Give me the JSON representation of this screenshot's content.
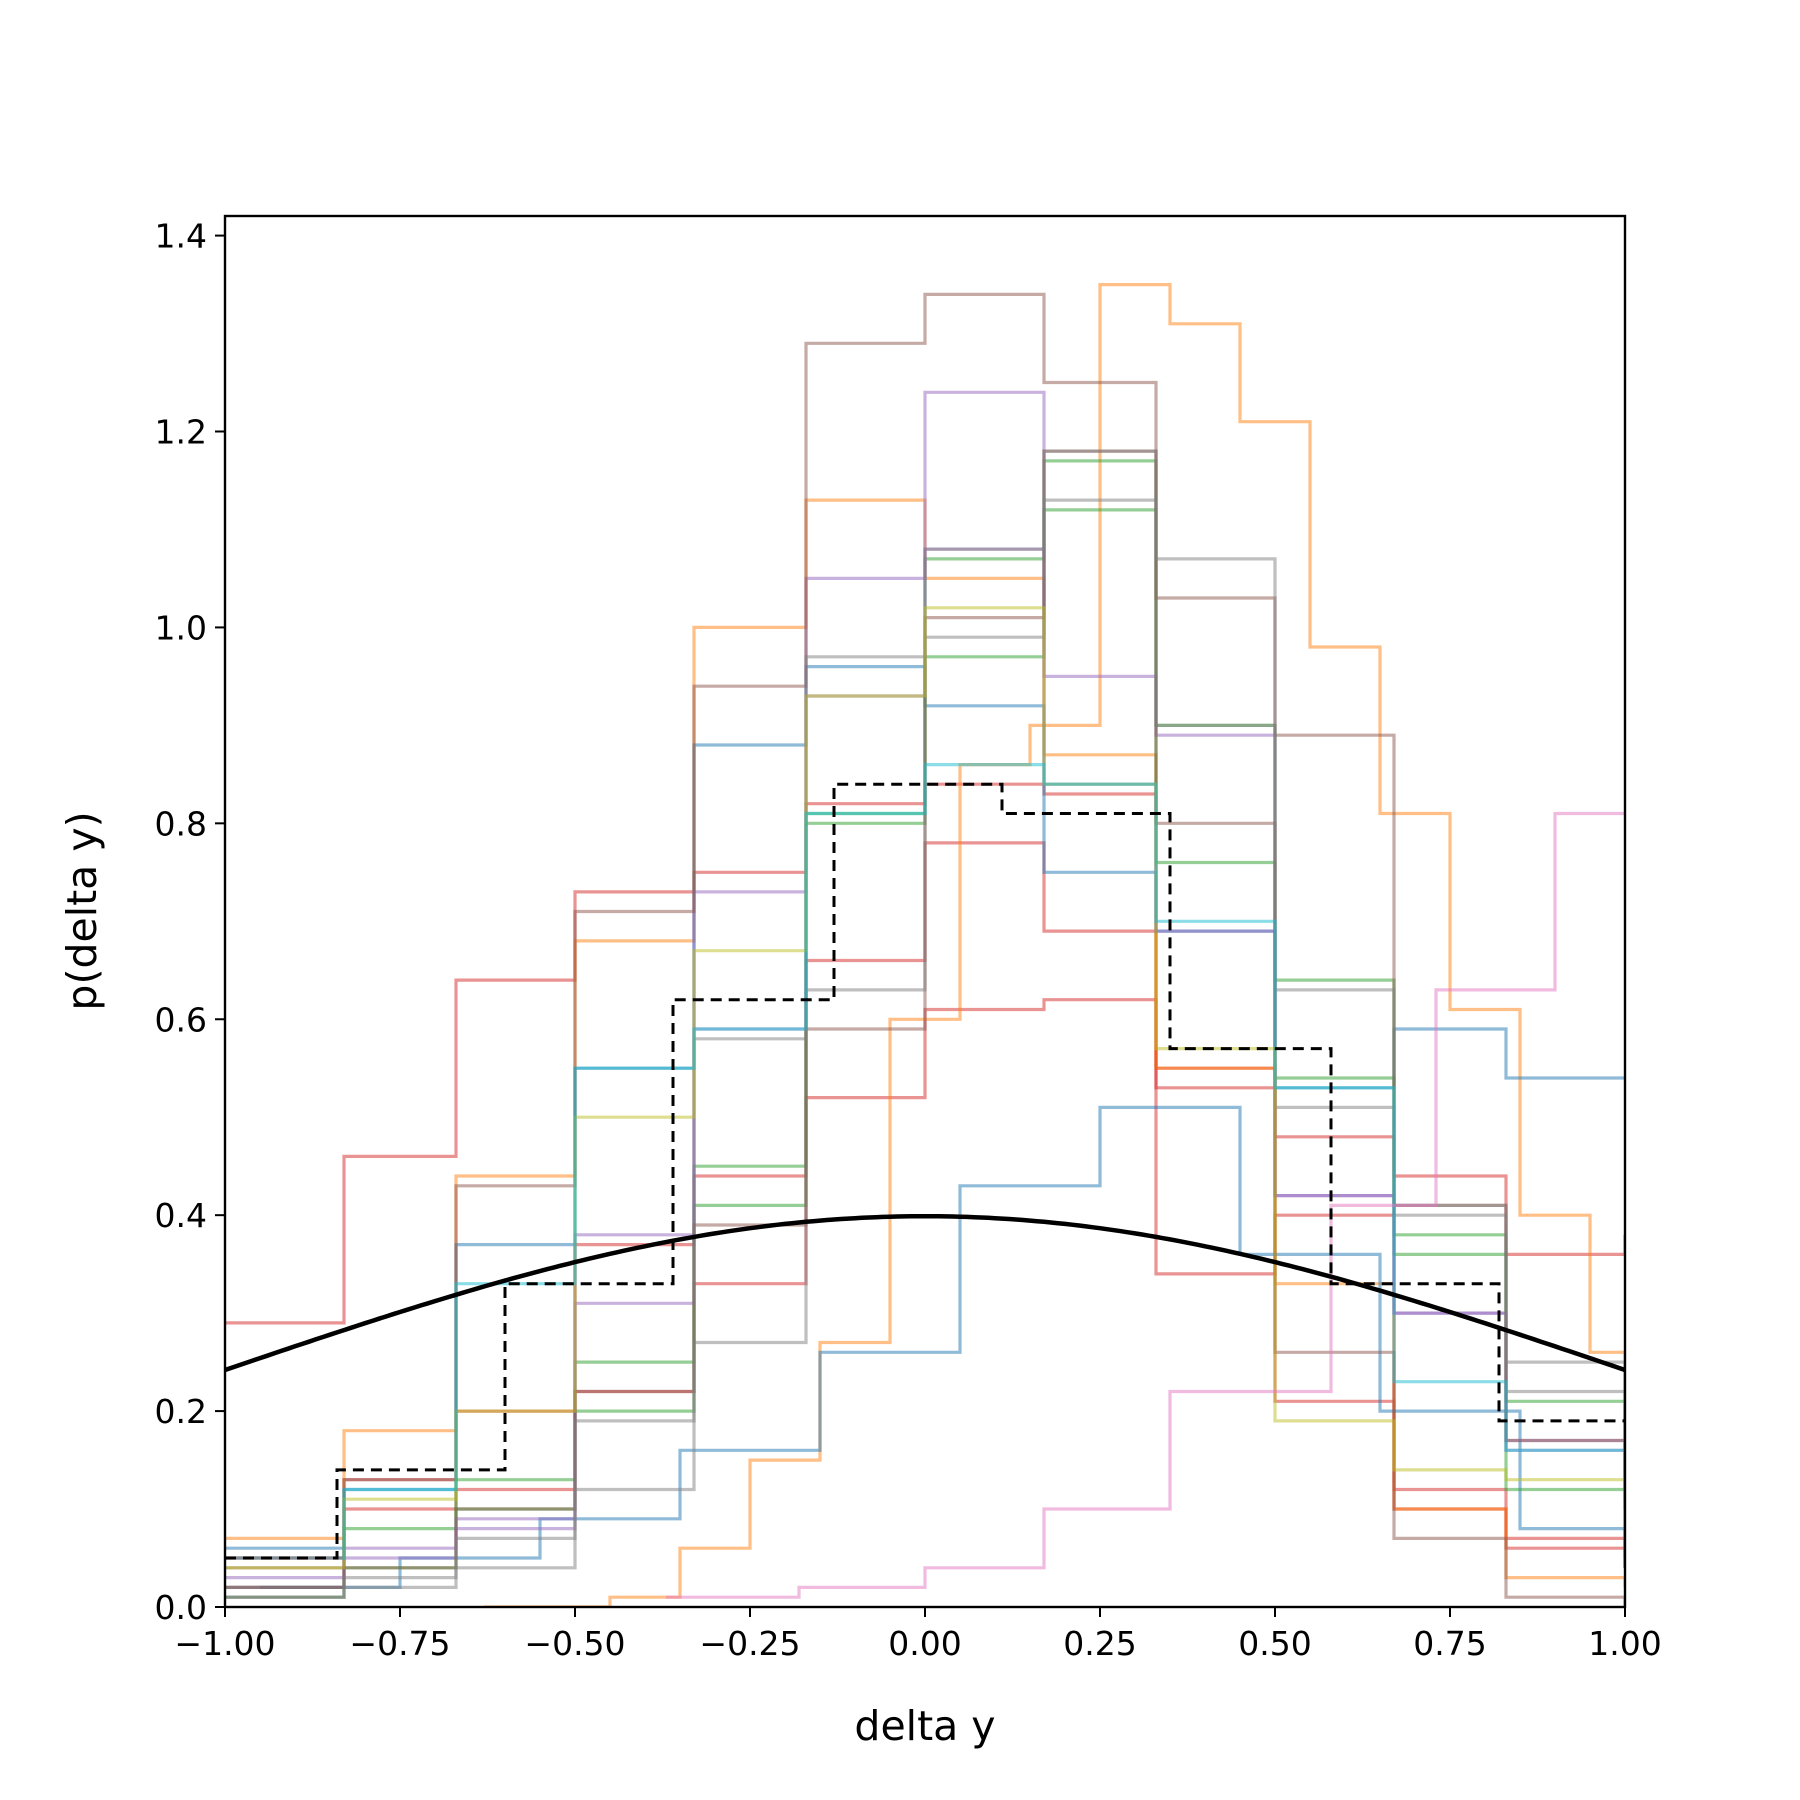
{
  "chart_data": {
    "type": "line",
    "xlabel": "delta y",
    "ylabel": "p(delta y)",
    "xlim": [
      -1.0,
      1.0
    ],
    "ylim": [
      0.0,
      1.42
    ],
    "x_ticks": [
      "−1.00",
      "−0.75",
      "−0.50",
      "−0.25",
      "0.00",
      "0.25",
      "0.50",
      "0.75",
      "1.00"
    ],
    "x_tick_values": [
      -1.0,
      -0.75,
      -0.5,
      -0.25,
      0.0,
      0.25,
      0.5,
      0.75,
      1.0
    ],
    "y_ticks": [
      "0.0",
      "0.2",
      "0.4",
      "0.6",
      "0.8",
      "1.0",
      "1.2",
      "1.4"
    ],
    "y_tick_values": [
      0.0,
      0.2,
      0.4,
      0.6,
      0.8,
      1.0,
      1.2,
      1.4
    ],
    "grid": false,
    "legend": "none",
    "series": [
      {
        "kind": "step",
        "color": "#d62728",
        "x": [
          -1.0,
          -0.83,
          -0.67,
          -0.5,
          -0.33,
          -0.17,
          0.0,
          0.17,
          0.33,
          0.5,
          0.67,
          0.83,
          1.0
        ],
        "values": [
          0.29,
          0.46,
          0.64,
          0.73,
          0.75,
          0.82,
          0.84,
          0.83,
          0.55,
          0.48,
          0.44,
          0.36,
          0.38
        ]
      },
      {
        "kind": "step",
        "color": "#d62728",
        "x": [
          -1.0,
          -0.83,
          -0.67,
          -0.5,
          -0.33,
          -0.17,
          0.0,
          0.17,
          0.33,
          0.5,
          0.67,
          0.83,
          1.0
        ],
        "values": [
          0.05,
          0.13,
          0.2,
          0.37,
          0.44,
          0.52,
          0.61,
          0.62,
          0.53,
          0.21,
          0.1,
          0.06,
          0.04
        ]
      },
      {
        "kind": "step",
        "color": "#d62728",
        "x": [
          -1.0,
          -0.83,
          -0.67,
          -0.5,
          -0.33,
          -0.17,
          0.0,
          0.17,
          0.33,
          0.5,
          0.67,
          0.83,
          1.0
        ],
        "values": [
          0.05,
          0.1,
          0.12,
          0.22,
          0.33,
          0.66,
          0.78,
          0.69,
          0.34,
          0.4,
          0.12,
          0.07,
          0.05
        ]
      },
      {
        "kind": "step",
        "color": "#ff7f0e",
        "x": [
          -1.0,
          -0.83,
          -0.67,
          -0.5,
          -0.33,
          -0.17,
          0.0,
          0.17,
          0.33,
          0.5,
          0.67,
          0.83,
          1.0
        ],
        "values": [
          0.07,
          0.18,
          0.44,
          0.68,
          1.0,
          1.13,
          1.05,
          0.87,
          0.55,
          0.33,
          0.1,
          0.03,
          0.02
        ]
      },
      {
        "kind": "step",
        "color": "#ff7f0e",
        "x": [
          -0.63,
          -0.45,
          -0.35,
          -0.25,
          -0.15,
          -0.05,
          0.05,
          0.15,
          0.25,
          0.35,
          0.45,
          0.55,
          0.65,
          0.75,
          0.85,
          0.95,
          1.0
        ],
        "values": [
          0.0,
          0.01,
          0.06,
          0.15,
          0.27,
          0.6,
          0.86,
          0.9,
          1.35,
          1.31,
          1.21,
          0.98,
          0.81,
          0.61,
          0.4,
          0.26,
          0.16
        ]
      },
      {
        "kind": "step",
        "color": "#1f77b4",
        "x": [
          -1.0,
          -0.83,
          -0.67,
          -0.5,
          -0.33,
          -0.17,
          0.0,
          0.17,
          0.33,
          0.5,
          0.67,
          0.83,
          1.0
        ],
        "values": [
          0.06,
          0.12,
          0.37,
          0.55,
          0.88,
          0.96,
          0.92,
          0.75,
          0.69,
          0.53,
          0.59,
          0.54,
          0.54
        ]
      },
      {
        "kind": "step",
        "color": "#1f77b4",
        "x": [
          -0.95,
          -0.75,
          -0.55,
          -0.35,
          -0.15,
          0.05,
          0.25,
          0.45,
          0.65,
          0.85,
          1.0
        ],
        "values": [
          0.02,
          0.05,
          0.09,
          0.16,
          0.26,
          0.43,
          0.51,
          0.36,
          0.2,
          0.08,
          0.06
        ]
      },
      {
        "kind": "step",
        "color": "#2ca02c",
        "x": [
          -1.0,
          -0.83,
          -0.67,
          -0.5,
          -0.33,
          -0.17,
          0.0,
          0.17,
          0.33,
          0.5,
          0.67,
          0.83,
          1.0
        ],
        "values": [
          0.02,
          0.08,
          0.13,
          0.25,
          0.45,
          0.8,
          1.07,
          1.17,
          0.9,
          0.64,
          0.38,
          0.12,
          0.04
        ]
      },
      {
        "kind": "step",
        "color": "#2ca02c",
        "x": [
          -1.0,
          -0.83,
          -0.67,
          -0.5,
          -0.33,
          -0.17,
          0.0,
          0.17,
          0.33,
          0.5,
          0.67,
          0.83,
          1.0
        ],
        "values": [
          0.01,
          0.04,
          0.1,
          0.2,
          0.41,
          0.81,
          0.97,
          1.12,
          0.76,
          0.54,
          0.36,
          0.21,
          0.04
        ]
      },
      {
        "kind": "step",
        "color": "#9467bd",
        "x": [
          -1.0,
          -0.83,
          -0.67,
          -0.5,
          -0.33,
          -0.17,
          0.0,
          0.17,
          0.33,
          0.5,
          0.67,
          0.83,
          1.0
        ],
        "values": [
          0.03,
          0.06,
          0.09,
          0.38,
          0.73,
          1.05,
          1.24,
          0.95,
          0.89,
          0.42,
          0.3,
          0.16,
          0.12
        ]
      },
      {
        "kind": "step",
        "color": "#9467bd",
        "x": [
          -1.0,
          -0.83,
          -0.67,
          -0.5,
          -0.33,
          -0.17,
          0.0,
          0.17,
          0.33,
          0.5,
          0.67,
          0.83,
          1.0
        ],
        "values": [
          0.02,
          0.05,
          0.08,
          0.31,
          0.59,
          0.93,
          1.08,
          0.84,
          0.69,
          0.42,
          0.3,
          0.17,
          0.12
        ]
      },
      {
        "kind": "step",
        "color": "#8c564b",
        "x": [
          -1.0,
          -0.83,
          -0.67,
          -0.5,
          -0.33,
          -0.17,
          0.0,
          0.17,
          0.33,
          0.5,
          0.67,
          0.83,
          1.0
        ],
        "values": [
          0.04,
          0.13,
          0.43,
          0.71,
          0.94,
          1.29,
          1.34,
          1.25,
          1.03,
          0.89,
          0.41,
          0.17,
          0.1
        ]
      },
      {
        "kind": "step",
        "color": "#8c564b",
        "x": [
          -1.0,
          -0.83,
          -0.67,
          -0.5,
          -0.33,
          -0.17,
          0.0,
          0.17,
          0.33,
          0.5,
          0.67,
          0.83,
          1.0
        ],
        "values": [
          0.02,
          0.04,
          0.1,
          0.22,
          0.39,
          0.59,
          1.01,
          1.18,
          0.8,
          0.26,
          0.07,
          0.01,
          0.0
        ]
      },
      {
        "kind": "step",
        "color": "#7f7f7f",
        "x": [
          -1.0,
          -0.83,
          -0.67,
          -0.5,
          -0.33,
          -0.17,
          0.0,
          0.17,
          0.33,
          0.5,
          0.67,
          0.83,
          1.0
        ],
        "values": [
          0.01,
          0.03,
          0.07,
          0.19,
          0.58,
          0.97,
          1.08,
          1.18,
          1.07,
          0.63,
          0.4,
          0.25,
          0.12
        ]
      },
      {
        "kind": "step",
        "color": "#7f7f7f",
        "x": [
          -1.0,
          -0.83,
          -0.67,
          -0.5,
          -0.33,
          -0.17,
          0.0,
          0.17,
          0.33,
          0.5,
          0.67,
          0.83,
          1.0
        ],
        "values": [
          0.01,
          0.02,
          0.04,
          0.12,
          0.27,
          0.63,
          0.99,
          1.13,
          0.9,
          0.51,
          0.41,
          0.22,
          0.11
        ]
      },
      {
        "kind": "step",
        "color": "#bcbd22",
        "x": [
          -1.0,
          -0.83,
          -0.67,
          -0.5,
          -0.33,
          -0.17,
          0.0,
          0.17,
          0.33,
          0.5,
          0.67,
          0.83,
          1.0
        ],
        "values": [
          0.04,
          0.11,
          0.2,
          0.5,
          0.67,
          0.93,
          1.02,
          0.84,
          0.57,
          0.19,
          0.14,
          0.13,
          0.13
        ]
      },
      {
        "kind": "step",
        "color": "#17becf",
        "x": [
          -1.0,
          -0.83,
          -0.67,
          -0.5,
          -0.33,
          -0.17,
          0.0,
          0.17,
          0.33,
          0.5,
          0.67,
          0.83,
          1.0
        ],
        "values": [
          0.05,
          0.12,
          0.33,
          0.55,
          0.59,
          0.81,
          0.86,
          0.84,
          0.7,
          0.53,
          0.23,
          0.16,
          0.1
        ]
      },
      {
        "kind": "step",
        "color": "#e377c2",
        "x": [
          -0.37,
          -0.18,
          0.0,
          0.17,
          0.35,
          0.58,
          0.73,
          0.9,
          1.0
        ],
        "values": [
          0.01,
          0.02,
          0.04,
          0.1,
          0.22,
          0.41,
          0.63,
          0.81,
          0.81
        ]
      },
      {
        "kind": "step-dashed",
        "color": "#000000",
        "x": [
          -1.0,
          -0.84,
          -0.6,
          -0.36,
          -0.13,
          0.11,
          0.35,
          0.58,
          0.82,
          1.0
        ],
        "values": [
          0.05,
          0.14,
          0.33,
          0.62,
          0.84,
          0.81,
          0.57,
          0.33,
          0.19,
          0.19
        ]
      },
      {
        "kind": "normal-pdf",
        "color": "#000000",
        "mean": 0.0,
        "std": 1.0
      }
    ]
  }
}
